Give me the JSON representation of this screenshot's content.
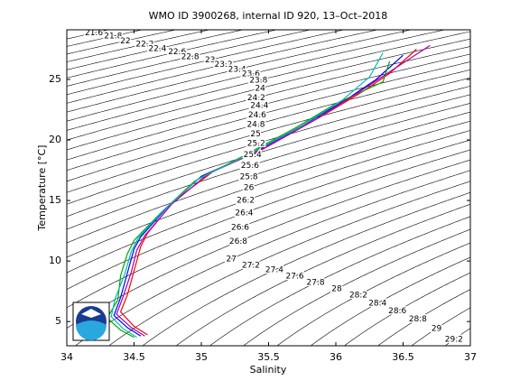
{
  "chart_data": {
    "type": "line",
    "title": "WMO ID 3900268, internal ID 920, 13–Oct–2018",
    "xlabel": "Salinity",
    "ylabel": "Temperature [°C]",
    "xlim": [
      34,
      37
    ],
    "xticks": [
      34,
      34.5,
      35,
      35.5,
      36,
      36.5,
      37
    ],
    "ylim": [
      3,
      29.1
    ],
    "yticks": [
      5,
      10,
      15,
      20,
      25
    ],
    "contour_levels": [
      21.6,
      21.8,
      22,
      22.2,
      22.4,
      22.6,
      22.8,
      23,
      23.2,
      23.4,
      23.6,
      23.8,
      24,
      24.2,
      24.4,
      24.6,
      24.8,
      25,
      25.2,
      25.4,
      25.6,
      25.8,
      26,
      26.2,
      26.4,
      26.6,
      26.8,
      27,
      27.2,
      27.4,
      27.6,
      27.8,
      28,
      28.2,
      28.4,
      28.6,
      28.8,
      29,
      29.2
    ],
    "series": [
      {
        "color": "#0000ff",
        "x": [
          36.5,
          36.3,
          36.1,
          35.8,
          35.4,
          35.0,
          34.75,
          34.55,
          34.5,
          34.45,
          34.4,
          34.35,
          34.45,
          34.55
        ],
        "values": [
          27,
          25,
          23.5,
          21.5,
          19,
          17,
          14.5,
          12,
          11,
          9,
          7,
          5.5,
          4.5,
          3.8
        ]
      },
      {
        "color": "#ff0000",
        "x": [
          36.6,
          36.4,
          36.2,
          35.9,
          35.5,
          35.1,
          34.8,
          34.6,
          34.55,
          34.5,
          34.45,
          34.4,
          34.5,
          34.6
        ],
        "values": [
          27.5,
          25.5,
          24,
          22,
          19.5,
          17.5,
          15,
          12.3,
          11.2,
          9.2,
          7.2,
          5.8,
          4.6,
          3.9
        ]
      },
      {
        "color": "#00aa00",
        "x": [
          36.4,
          36.35,
          36.0,
          35.7,
          35.3,
          34.95,
          34.7,
          34.5,
          34.45,
          34.4,
          34.38,
          34.3,
          34.4,
          34.5
        ],
        "values": [
          26.5,
          24.8,
          23,
          21,
          18.6,
          16.6,
          14,
          11.7,
          10.6,
          8.8,
          6.8,
          5.3,
          4.3,
          3.7
        ]
      },
      {
        "color": "#aa00aa",
        "x": [
          36.7,
          36.45,
          36.15,
          35.85,
          35.45,
          35.05,
          34.78,
          34.58,
          34.52,
          34.48,
          34.42,
          34.37,
          34.48,
          34.58
        ],
        "values": [
          27.8,
          26,
          23.8,
          21.7,
          19.2,
          17.2,
          14.7,
          12.1,
          10.9,
          9.1,
          7.1,
          5.6,
          4.5,
          3.8
        ]
      },
      {
        "color": "#00bbbb",
        "x": [
          36.35,
          36.25,
          36.05,
          35.75,
          35.35,
          34.98,
          34.72,
          34.53,
          34.48,
          34.43,
          34.36,
          34.33,
          34.42,
          34.52
        ],
        "values": [
          27.2,
          25.2,
          23.3,
          21.2,
          18.8,
          16.8,
          14.2,
          11.9,
          10.8,
          8.9,
          6.9,
          5.4,
          4.4,
          3.7
        ]
      }
    ]
  }
}
